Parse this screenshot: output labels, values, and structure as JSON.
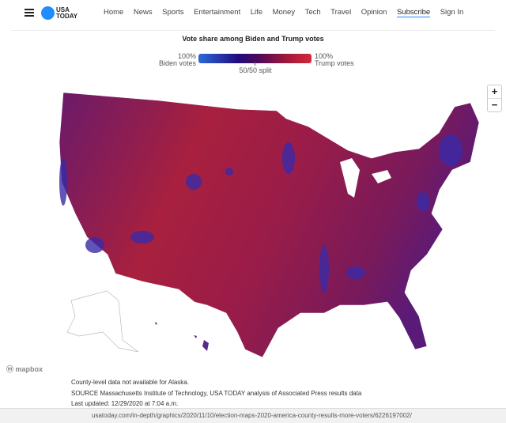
{
  "nav": {
    "logo": "USA TODAY",
    "logo_line1": "USA",
    "logo_line2": "TODAY",
    "links": [
      "Home",
      "News",
      "Sports",
      "Entertainment",
      "Life",
      "Money",
      "Tech",
      "Travel",
      "Opinion",
      "Subscribe",
      "Sign In"
    ]
  },
  "legend": {
    "title": "Vote share among Biden and Trump votes",
    "left_pct": "100%",
    "left_label": "Biden votes",
    "right_pct": "100%",
    "right_label": "Trump votes",
    "mid_label": "50/50 split",
    "colors": {
      "biden": "#2a6ad8",
      "mid": "#4a0a5a",
      "trump": "#d42a3a"
    }
  },
  "zoom": {
    "in": "+",
    "out": "−"
  },
  "map": {
    "attribution": "mapbox"
  },
  "notes": [
    "County-level data not available for Alaska.",
    "SOURCE Massachusetts Institute of Technology, USA TODAY analysis of Associated Press results data",
    "Last updated: 12/29/2020 at 7:04 a.m."
  ],
  "status_url": "usatoday.com/in-depth/graphics/2020/11/10/election-maps-2020-america-county-results-more-voters/6226197002/"
}
